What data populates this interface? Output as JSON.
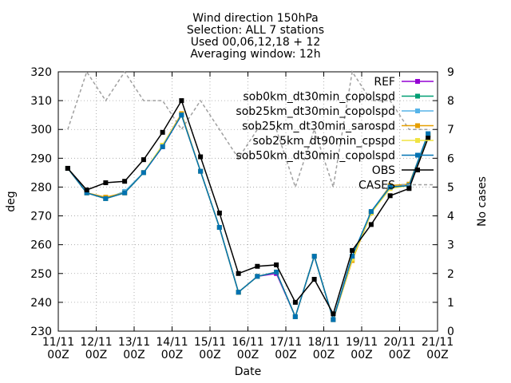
{
  "chart_data": {
    "type": "line",
    "title_lines": [
      "Wind direction 150hPa",
      "Selection: ALL       7 stations",
      "Used 00,06,12,18 + 12",
      "Averaging window: 12h"
    ],
    "xlabel": "Date",
    "ylabel": "deg",
    "y2label": "No cases",
    "ylim": [
      230,
      320
    ],
    "y2lim": [
      0,
      9
    ],
    "xlim": [
      0,
      20
    ],
    "grid": true,
    "legend_position": "top-right",
    "x_ticks": [
      {
        "x": 0,
        "line1": "11/11",
        "line2": "00Z"
      },
      {
        "x": 2,
        "line1": "12/11",
        "line2": "00Z"
      },
      {
        "x": 4,
        "line1": "13/11",
        "line2": "00Z"
      },
      {
        "x": 6,
        "line1": "14/11",
        "line2": "00Z"
      },
      {
        "x": 8,
        "line1": "15/11",
        "line2": "00Z"
      },
      {
        "x": 10,
        "line1": "16/11",
        "line2": "00Z"
      },
      {
        "x": 12,
        "line1": "17/11",
        "line2": "00Z"
      },
      {
        "x": 14,
        "line1": "18/11",
        "line2": "00Z"
      },
      {
        "x": 16,
        "line1": "19/11",
        "line2": "00Z"
      },
      {
        "x": 18,
        "line1": "20/11",
        "line2": "00Z"
      },
      {
        "x": 20,
        "line1": "21/11",
        "line2": "00Z"
      }
    ],
    "y_ticks": [
      230,
      240,
      250,
      260,
      270,
      280,
      290,
      300,
      310,
      320
    ],
    "y2_ticks": [
      0,
      1,
      2,
      3,
      4,
      5,
      6,
      7,
      8,
      9
    ],
    "x": [
      0.5,
      1.5,
      2.5,
      3.5,
      4.5,
      5.5,
      6.5,
      7.5,
      8.5,
      9.5,
      10.5,
      11.5,
      12.5,
      13.5,
      14.5,
      15.5,
      16.5,
      17.5,
      18.5,
      19.5
    ],
    "series": [
      {
        "name": "REF",
        "color": "#9400d3",
        "values": [
          286.5,
          278,
          276,
          278,
          285,
          294,
          305,
          285.5,
          266,
          243.5,
          249,
          250,
          235,
          256,
          234,
          255,
          271,
          280,
          280.5,
          298
        ]
      },
      {
        "name": "sob0km_dt30min_copolspd",
        "color": "#009e73",
        "values": [
          286.5,
          278,
          276,
          278,
          285,
          294.5,
          305,
          285.5,
          266,
          243.5,
          249,
          250.5,
          235,
          256,
          234,
          256,
          271,
          280,
          280.5,
          298
        ]
      },
      {
        "name": "sob25km_dt30min_copolspd",
        "color": "#56b4e9",
        "values": [
          286.5,
          278,
          276,
          278.5,
          285,
          294.5,
          305,
          285.5,
          266,
          243.5,
          249,
          250.5,
          235,
          256,
          234,
          256,
          271.5,
          280.5,
          281,
          298.5
        ]
      },
      {
        "name": "sob25km_dt30min_sarospd",
        "color": "#e69f00",
        "values": [
          286.5,
          278,
          276.5,
          278,
          285,
          294.5,
          305.5,
          285.5,
          266,
          243.5,
          249,
          250.5,
          235,
          256,
          234,
          254.5,
          271,
          280.5,
          281,
          298
        ]
      },
      {
        "name": "sob25km_dt90min_cpspd",
        "color": "#f0e442",
        "values": [
          286.5,
          278,
          276,
          278,
          285,
          294.5,
          305,
          285.5,
          266,
          243.5,
          249,
          250.5,
          235,
          256,
          234,
          255,
          271,
          279.5,
          280.5,
          298
        ]
      },
      {
        "name": "sob50km_dt30min_copolspd",
        "color": "#0072b2",
        "values": [
          286.5,
          278,
          276,
          278,
          285,
          294,
          305,
          285.5,
          266,
          243.5,
          249,
          250.5,
          235,
          256,
          234,
          256,
          271.5,
          280,
          280.5,
          298.5
        ]
      },
      {
        "name": "OBS",
        "color": "#000000",
        "values": [
          286.5,
          279,
          281.5,
          282,
          289.5,
          299,
          310,
          290.5,
          271,
          250,
          252.5,
          253,
          240,
          248,
          236,
          258,
          267,
          277,
          279.5,
          297
        ]
      }
    ],
    "cases": {
      "name": "CASES",
      "color": "#a0a0a0",
      "values": [
        7,
        9,
        8,
        9,
        8,
        8,
        7,
        8,
        7,
        6,
        7,
        7,
        5,
        7,
        5,
        9,
        8,
        8,
        7,
        7
      ]
    }
  }
}
